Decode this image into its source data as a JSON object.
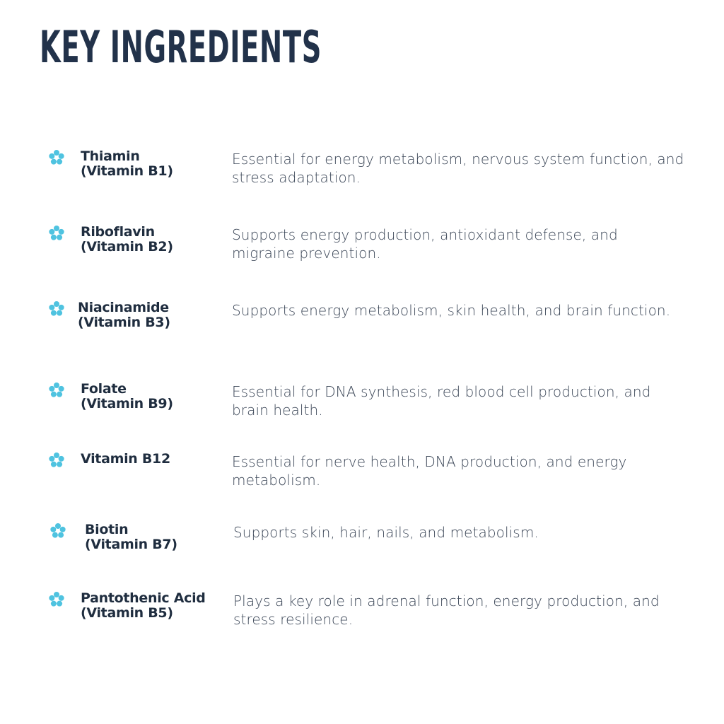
{
  "title": "KEY INGREDIENTS",
  "accent_color": "#4fc3e0",
  "icon": "dot-ring-icon",
  "ingredients": [
    {
      "name": "Thiamin",
      "subname": "(Vitamin B1)",
      "description": "Essential for energy metabolism, nervous system function, and stress adaptation."
    },
    {
      "name": "Riboflavin",
      "subname": "(Vitamin B2)",
      "description": "Supports energy production, antioxidant defense, and migraine prevention."
    },
    {
      "name": "Niacinamide",
      "subname": "(Vitamin B3)",
      "description": "Supports energy metabolism, skin health, and brain function."
    },
    {
      "name": "Folate",
      "subname": "(Vitamin B9)",
      "description": "Essential for DNA synthesis, red blood cell production, and brain health."
    },
    {
      "name": "Vitamin B12",
      "subname": "",
      "description": "Essential for nerve health, DNA production, and energy metabolism."
    },
    {
      "name": "Biotin",
      "subname": "(Vitamin B7)",
      "description": "Supports skin, hair, nails, and metabolism."
    },
    {
      "name": "Pantothenic Acid",
      "subname": "(Vitamin B5)",
      "description": "Plays a key role in adrenal function, energy production, and stress resilience."
    }
  ]
}
